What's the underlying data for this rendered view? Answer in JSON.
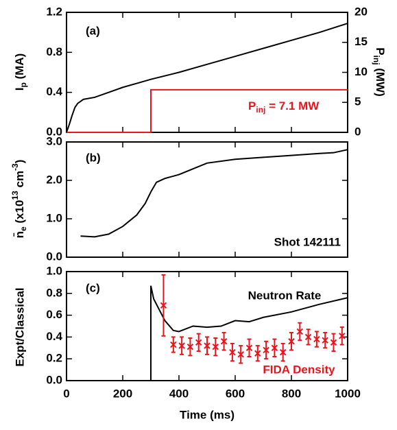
{
  "chart_data": [
    {
      "type": "line",
      "panel_label": "(a)",
      "ylabel": [
        "I",
        "p",
        " (MA)"
      ],
      "y2label": [
        "P",
        "inj",
        " (MW)"
      ],
      "annotation": [
        "P",
        "inj",
        " = 7.1 MW"
      ],
      "xlim": [
        0,
        1000
      ],
      "xticks": [
        0,
        200,
        400,
        600,
        800,
        1000
      ],
      "ylim": [
        0,
        1.2
      ],
      "yticks": [
        {
          "value": 0,
          "label": "0.0"
        },
        {
          "value": 0.4,
          "label": "0.4"
        },
        {
          "value": 0.8,
          "label": "0.8"
        },
        {
          "value": 1.2,
          "label": "1.2"
        }
      ],
      "y2lim": [
        0,
        20
      ],
      "y2ticks": [
        0,
        5,
        10,
        15,
        20
      ],
      "series": [
        {
          "color": "#000000",
          "x": [
            0,
            10,
            20,
            30,
            40,
            50,
            60,
            80,
            100,
            150,
            200,
            250,
            300,
            400,
            500,
            600,
            700,
            800,
            900,
            1000
          ],
          "values": [
            0,
            0.08,
            0.17,
            0.25,
            0.29,
            0.31,
            0.33,
            0.34,
            0.35,
            0.4,
            0.45,
            0.49,
            0.53,
            0.6,
            0.68,
            0.76,
            0.84,
            0.92,
            1.0,
            1.09
          ]
        },
        {
          "color": "#e8141c",
          "axis": "y2",
          "x": [
            0,
            300,
            300,
            1000
          ],
          "values": [
            0,
            0,
            7.1,
            7.1
          ]
        }
      ]
    },
    {
      "type": "line",
      "panel_label": "(b)",
      "ylabel": [
        "n̄",
        "e",
        " (x10",
        "13",
        " cm",
        "-3",
        ")"
      ],
      "annotation": "Shot 142111",
      "xlim": [
        0,
        1000
      ],
      "xticks": [
        0,
        200,
        400,
        600,
        800,
        1000
      ],
      "ylim": [
        0,
        3
      ],
      "yticks": [
        {
          "value": 0,
          "label": "0.0"
        },
        {
          "value": 1,
          "label": "1.0"
        },
        {
          "value": 2,
          "label": "2.0"
        },
        {
          "value": 3,
          "label": "3.0"
        }
      ],
      "series": [
        {
          "color": "#000000",
          "x": [
            50,
            100,
            150,
            200,
            250,
            280,
            300,
            320,
            350,
            400,
            450,
            500,
            600,
            700,
            800,
            900,
            950,
            1000
          ],
          "values": [
            0.55,
            0.53,
            0.6,
            0.8,
            1.1,
            1.4,
            1.7,
            1.95,
            2.05,
            2.15,
            2.3,
            2.45,
            2.55,
            2.6,
            2.65,
            2.7,
            2.72,
            2.8
          ]
        }
      ]
    },
    {
      "type": "line",
      "panel_label": "(c)",
      "ylabel": "Expt/Classical",
      "xlabel": "Time (ms)",
      "annotations": [
        "Neutron Rate",
        "FIDA Density"
      ],
      "xlim": [
        0,
        1000
      ],
      "xticks": [
        0,
        200,
        400,
        600,
        800,
        1000
      ],
      "ylim": [
        0,
        1
      ],
      "yticks": [
        {
          "value": 0,
          "label": "0.0"
        },
        {
          "value": 0.2,
          "label": "0.2"
        },
        {
          "value": 0.4,
          "label": "0.4"
        },
        {
          "value": 0.6,
          "label": "0.6"
        },
        {
          "value": 0.8,
          "label": "0.8"
        },
        {
          "value": 1,
          "label": "1.0"
        }
      ],
      "series": [
        {
          "color": "#000000",
          "x": [
            300,
            300,
            310,
            330,
            350,
            380,
            400,
            450,
            500,
            550,
            600,
            650,
            700,
            800,
            900,
            1000
          ],
          "values": [
            0,
            0.87,
            0.75,
            0.65,
            0.55,
            0.46,
            0.45,
            0.5,
            0.49,
            0.5,
            0.55,
            0.54,
            0.58,
            0.63,
            0.7,
            0.76
          ]
        },
        {
          "color": "#e8141c",
          "style": "errorbar",
          "x": [
            345,
            380,
            410,
            440,
            470,
            500,
            530,
            560,
            590,
            620,
            650,
            680,
            710,
            740,
            770,
            800,
            830,
            860,
            890,
            920,
            950,
            980
          ],
          "values": [
            0.69,
            0.33,
            0.32,
            0.31,
            0.35,
            0.32,
            0.31,
            0.36,
            0.26,
            0.24,
            0.3,
            0.25,
            0.28,
            0.3,
            0.26,
            0.36,
            0.45,
            0.4,
            0.38,
            0.37,
            0.35,
            0.41
          ],
          "errors": [
            0.28,
            0.07,
            0.08,
            0.08,
            0.08,
            0.08,
            0.08,
            0.08,
            0.08,
            0.08,
            0.08,
            0.07,
            0.08,
            0.08,
            0.08,
            0.08,
            0.08,
            0.07,
            0.07,
            0.07,
            0.08,
            0.08
          ]
        }
      ]
    }
  ]
}
